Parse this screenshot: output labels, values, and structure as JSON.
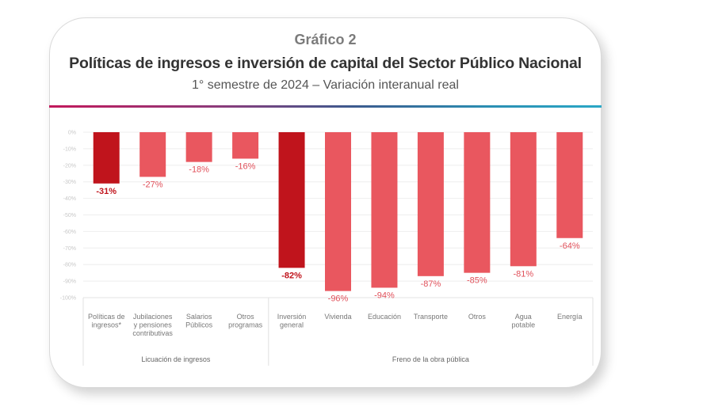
{
  "header": {
    "kicker": "Gráfico 2",
    "title": "Políticas de ingresos e inversión de capital del Sector Público Nacional",
    "subtitle": "1° semestre de 2024 – Variación interanual real"
  },
  "colors": {
    "highlight": "#c0141c",
    "normal": "#e9575f"
  },
  "chart_data": {
    "type": "bar",
    "title": "Políticas de ingresos e inversión de capital del Sector Público Nacional",
    "subtitle": "1° semestre de 2024 – Variación interanual real",
    "xlabel": "",
    "ylabel": "",
    "ylim": [
      -100,
      0
    ],
    "yticks": [
      0,
      -10,
      -20,
      -30,
      -40,
      -50,
      -60,
      -70,
      -80,
      -90,
      -100
    ],
    "ytick_labels": [
      "0%",
      "-10%",
      "-20%",
      "-30%",
      "-40%",
      "-50%",
      "-60%",
      "-70%",
      "-80%",
      "-90%",
      "-100%"
    ],
    "grid": true,
    "categories": [
      [
        "Políticas de",
        "ingresos*"
      ],
      [
        "Jubilaciones",
        "y pensiones",
        "contributivas"
      ],
      [
        "Salarios",
        "Públicos"
      ],
      [
        "Otros",
        "programas"
      ],
      [
        "Inversión",
        "general"
      ],
      [
        "Vivienda"
      ],
      [
        "Educación"
      ],
      [
        "Transporte"
      ],
      [
        "Otros"
      ],
      [
        "Agua",
        "potable"
      ],
      [
        "Energía"
      ]
    ],
    "values": [
      -31,
      -27,
      -18,
      -16,
      -82,
      -96,
      -94,
      -87,
      -85,
      -81,
      -64
    ],
    "labels": [
      "-31%",
      "-27%",
      "-18%",
      "-16%",
      "-82%",
      "-96%",
      "-94%",
      "-87%",
      "-85%",
      "-81%",
      "-64%"
    ],
    "highlight": [
      true,
      false,
      false,
      false,
      true,
      false,
      false,
      false,
      false,
      false,
      false
    ],
    "groups": [
      {
        "name": "Licuación de ingresos",
        "start": 0,
        "end": 3
      },
      {
        "name": "Freno de la obra pública",
        "start": 4,
        "end": 10
      }
    ]
  }
}
